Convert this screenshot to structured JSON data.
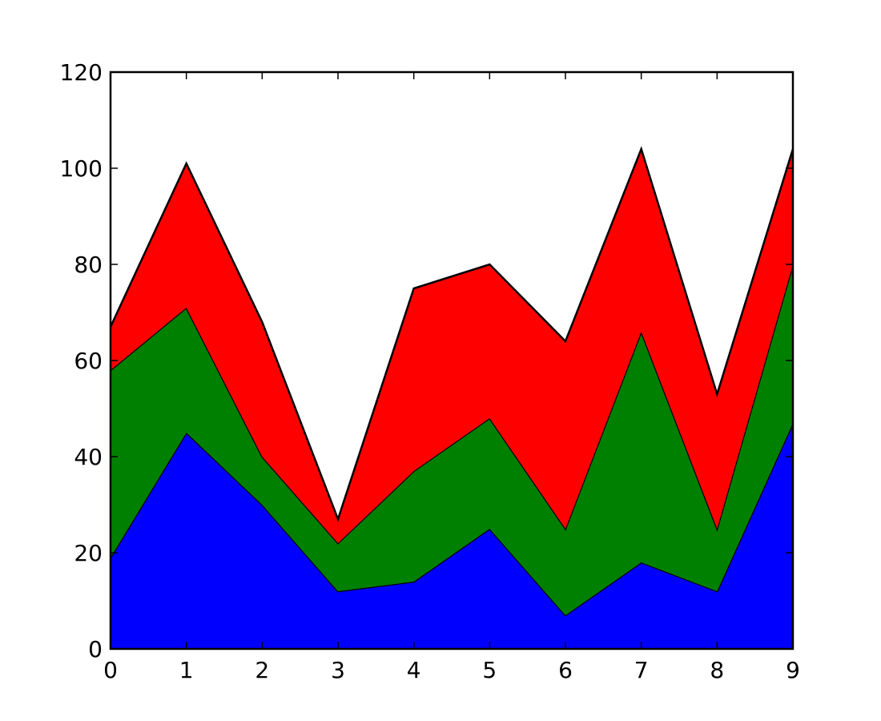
{
  "chart_data": {
    "type": "stacked_area",
    "x": [
      0,
      1,
      2,
      3,
      4,
      5,
      6,
      7,
      8,
      9
    ],
    "series": [
      {
        "color": "#0000ff",
        "values": [
          19,
          45,
          30,
          12,
          14,
          25,
          7,
          18,
          12,
          47
        ]
      },
      {
        "color": "#008000",
        "values": [
          39,
          26,
          10,
          10,
          23,
          23,
          18,
          48,
          13,
          33
        ]
      },
      {
        "color": "#ff0000",
        "values": [
          9,
          30,
          28,
          5,
          38,
          32,
          39,
          38,
          28,
          24
        ]
      }
    ],
    "xlim": [
      0,
      9
    ],
    "xticks": [
      0,
      1,
      2,
      3,
      4,
      5,
      6,
      7,
      8,
      9
    ],
    "ylim": [
      0,
      120
    ],
    "yticks": [
      0,
      20,
      40,
      60,
      80,
      100,
      120
    ]
  }
}
